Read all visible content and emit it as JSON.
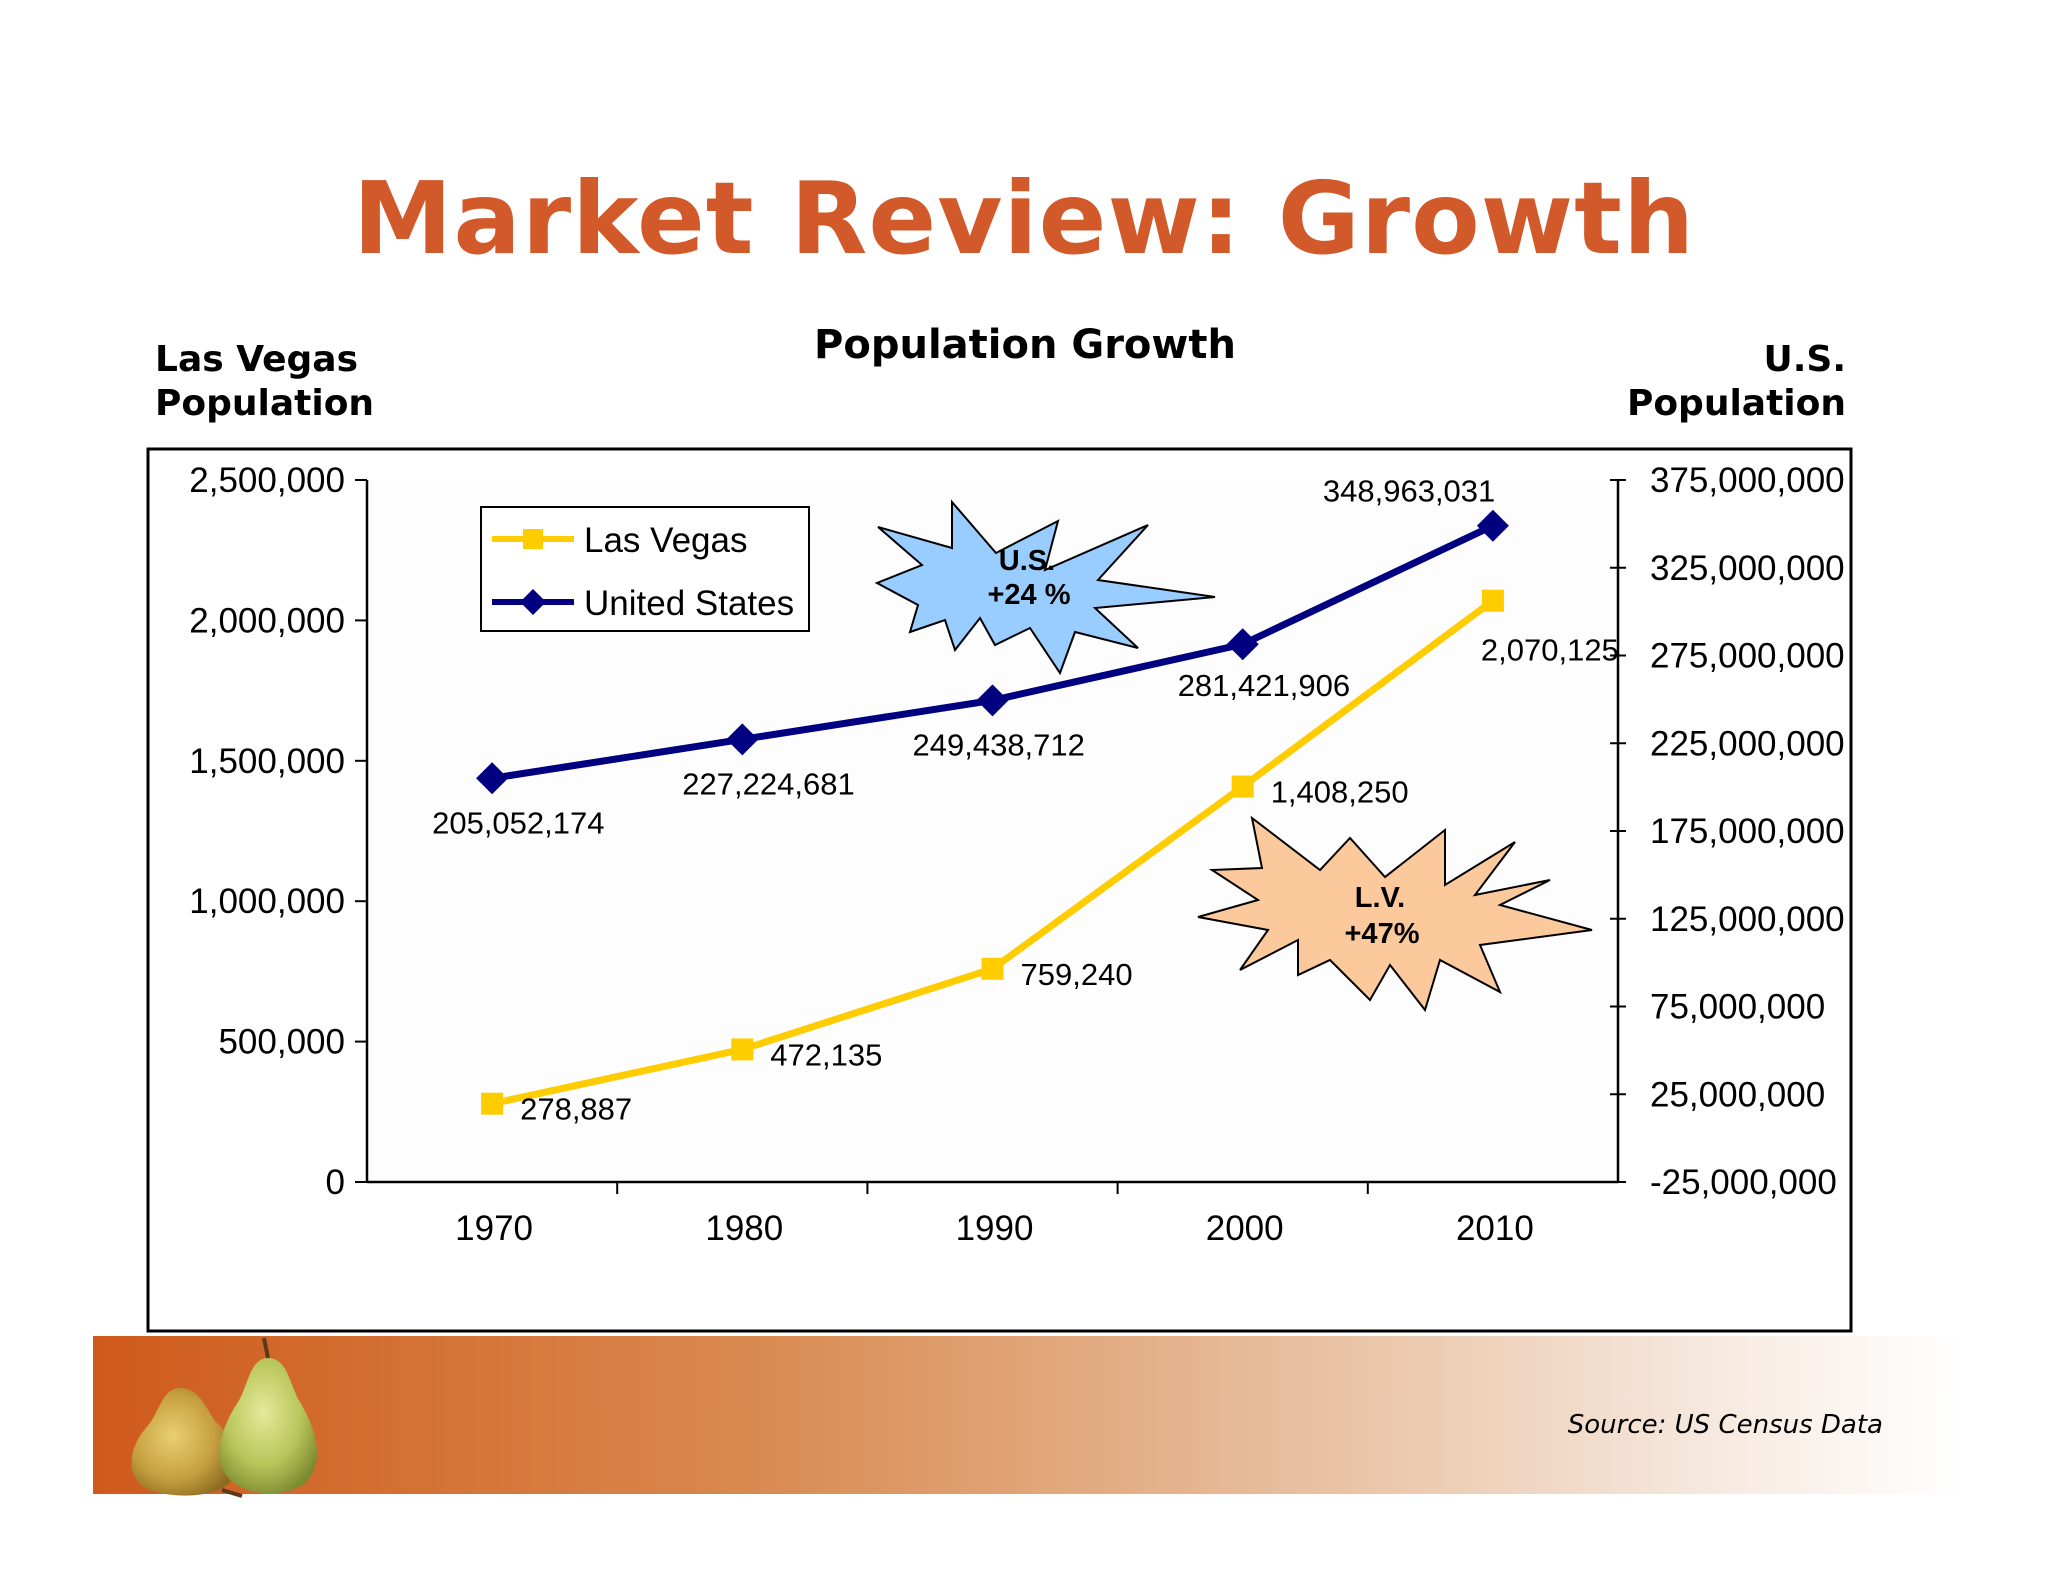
{
  "slide": {
    "title": "Market Review: Growth",
    "source": "Source: US Census Data"
  },
  "axis_titles": {
    "left_line1": "Las Vegas",
    "left_line2": "Population",
    "right_line1": "U.S.",
    "right_line2": "Population"
  },
  "chart_data": {
    "type": "line",
    "title": "Population Growth",
    "categories": [
      "1970",
      "1980",
      "1990",
      "2000",
      "2010"
    ],
    "series": [
      {
        "name": "Las Vegas",
        "axis": "left",
        "color": "#ffcc00",
        "marker": "square",
        "values": [
          278887,
          472135,
          759240,
          1408250,
          2070125
        ],
        "labels": [
          "278,887",
          "472,135",
          "759,240",
          "1,408,250",
          "2,070,125"
        ]
      },
      {
        "name": "United States",
        "axis": "right",
        "color": "#000080",
        "marker": "diamond",
        "values": [
          205052174,
          227224681,
          249438712,
          281421906,
          348963031
        ],
        "labels": [
          "205,052,174",
          "227,224,681",
          "249,438,712",
          "281,421,906",
          "348,963,031"
        ]
      }
    ],
    "left_axis": {
      "range": [
        0,
        2500000
      ],
      "ticks": [
        0,
        500000,
        1000000,
        1500000,
        2000000,
        2500000
      ],
      "tick_labels": [
        "0",
        "500,000",
        "1,000,000",
        "1,500,000",
        "2,000,000",
        "2,500,000"
      ]
    },
    "right_axis": {
      "range": [
        -25000000,
        375000000
      ],
      "ticks": [
        -25000000,
        25000000,
        75000000,
        125000000,
        175000000,
        225000000,
        275000000,
        325000000,
        375000000
      ],
      "tick_labels": [
        "-25,000,000",
        "25,000,000",
        "75,000,000",
        "125,000,000",
        "175,000,000",
        "225,000,000",
        "275,000,000",
        "325,000,000",
        "375,000,000"
      ]
    },
    "legend": {
      "position": "top-left",
      "items": [
        "Las Vegas",
        "United States"
      ]
    },
    "annotations": [
      {
        "id": "us",
        "line1": "U.S.",
        "line2": "+24 %",
        "fill": "#99ccff"
      },
      {
        "id": "lv",
        "line1": "L.V.",
        "line2": "+47%",
        "fill": "#fbc99c"
      }
    ]
  }
}
